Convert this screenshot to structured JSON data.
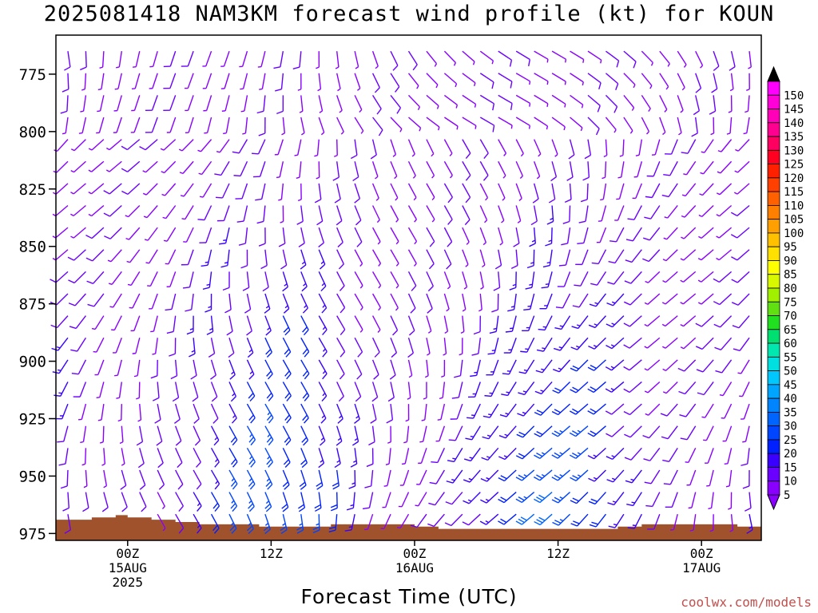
{
  "chart_data": {
    "type": "wind barb time-height profile",
    "title": "2025081418 NAM3KM forecast wind profile (kt) for KOUN",
    "xlabel": "Forecast Time (UTC)",
    "ylabel": "",
    "y_ticks": [
      775,
      800,
      825,
      850,
      875,
      900,
      925,
      950,
      975
    ],
    "ylim_hPa": [
      758,
      978
    ],
    "y_axis_inverted": true,
    "x_ticks": [
      {
        "hour": 6,
        "label": "00Z",
        "sub1": "15AUG",
        "sub2": "2025"
      },
      {
        "hour": 18,
        "label": "12Z",
        "sub1": "",
        "sub2": ""
      },
      {
        "hour": 30,
        "label": "00Z",
        "sub1": "16AUG",
        "sub2": ""
      },
      {
        "hour": 42,
        "label": "12Z",
        "sub1": "",
        "sub2": ""
      },
      {
        "hour": 54,
        "label": "00Z",
        "sub1": "17AUG",
        "sub2": ""
      }
    ],
    "xlim_hours": [
      0,
      59
    ],
    "colorbar": {
      "units": "kt",
      "labels": [
        5,
        10,
        15,
        20,
        25,
        30,
        35,
        40,
        45,
        50,
        55,
        60,
        65,
        70,
        75,
        80,
        85,
        90,
        95,
        100,
        105,
        110,
        115,
        120,
        125,
        130,
        135,
        140,
        145,
        150
      ],
      "colors": [
        "#8a00ff",
        "#6a00ff",
        "#3a00ff",
        "#0020ff",
        "#0045ff",
        "#0065ff",
        "#0085ff",
        "#00a5ff",
        "#00c8ff",
        "#00e0e0",
        "#00e8b0",
        "#00e070",
        "#20e020",
        "#60e010",
        "#a0f000",
        "#d8f800",
        "#ffff00",
        "#ffe000",
        "#ffc000",
        "#ffa000",
        "#ff8000",
        "#ff6000",
        "#ff4000",
        "#ff2000",
        "#ff0020",
        "#ff0060",
        "#ff0090",
        "#ff00b8",
        "#ff00d8",
        "#ff00ff"
      ],
      "top_arrow_color": "#000000",
      "bottom_arrow_color": "#8a00ff"
    },
    "terrain_color": "#a0522d",
    "surface_pressure_hPa": [
      969,
      969,
      969,
      968,
      968,
      967,
      968,
      968,
      969,
      969,
      970,
      970,
      971,
      971,
      971,
      971,
      971,
      972,
      972,
      972,
      972,
      972,
      972,
      971,
      971,
      971,
      971,
      971,
      971,
      971,
      972,
      972,
      973,
      973,
      973,
      973,
      973,
      973,
      973,
      973,
      973,
      973,
      973,
      973,
      973,
      973,
      973,
      972,
      972,
      971,
      971,
      971,
      971,
      971,
      971,
      971,
      971,
      972,
      972,
      972
    ]
  },
  "credit": "coolwx.com/models"
}
